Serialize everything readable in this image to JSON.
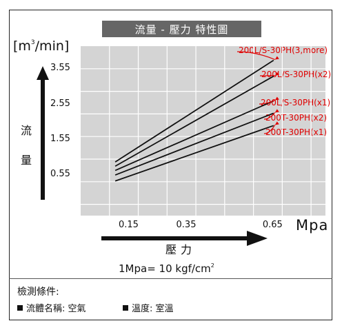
{
  "header": {
    "title": "流量 - 壓力 特性圖"
  },
  "y_axis": {
    "unit_prefix": "[m",
    "unit_sup": "3",
    "unit_suffix": "/min]",
    "label_char_1": "流",
    "label_char_2": "量"
  },
  "x_axis": {
    "unit": "Mpa",
    "label": "壓力"
  },
  "conversion": {
    "text": "1Mpa= 10 kgf/cm",
    "sup": "2"
  },
  "conditions": {
    "title": "檢測條件:",
    "items": [
      {
        "label": "流體名稱: 空氣"
      },
      {
        "label": "溫度: 室溫"
      }
    ]
  },
  "colors": {
    "plot_bg": "#d4d4d4",
    "grid": "#ffffff",
    "line": "#111111",
    "annotation": "#e00000",
    "title_bg": "#666666"
  },
  "chart_data": {
    "type": "line",
    "title": "流量 - 壓力 特性圖",
    "xlabel": "壓力",
    "x_unit": "Mpa",
    "ylabel": "流量",
    "y_unit": "[m3/min]",
    "x_ticks": [
      {
        "value": 0.15,
        "label": "0.15"
      },
      {
        "value": 0.35,
        "label": "0.35"
      },
      {
        "value": 0.65,
        "label": "0.65"
      }
    ],
    "y_ticks": [
      {
        "value": 0.55,
        "label": "0.55"
      },
      {
        "value": 1.55,
        "label": "1.55"
      },
      {
        "value": 2.55,
        "label": "2.55"
      },
      {
        "value": 3.55,
        "label": "3.55"
      }
    ],
    "xlim": [
      -0.02,
      0.83
    ],
    "ylim": [
      -0.6,
      4.2
    ],
    "grid": true,
    "series": [
      {
        "name": "200L/S-30PH(3,more)",
        "points": [
          [
            0.1,
            0.92
          ],
          [
            0.65,
            3.8
          ]
        ]
      },
      {
        "name": "200L/S-30PH(x2)",
        "points": [
          [
            0.1,
            0.8
          ],
          [
            0.65,
            3.35
          ]
        ]
      },
      {
        "name": "200L/S-30PH(x1)",
        "points": [
          [
            0.1,
            0.68
          ],
          [
            0.65,
            2.65
          ]
        ]
      },
      {
        "name": "200T-30PH(x2)",
        "points": [
          [
            0.1,
            0.55
          ],
          [
            0.65,
            2.3
          ]
        ]
      },
      {
        "name": "200T-30PH(x1)",
        "points": [
          [
            0.1,
            0.38
          ],
          [
            0.65,
            1.95
          ]
        ]
      }
    ]
  }
}
